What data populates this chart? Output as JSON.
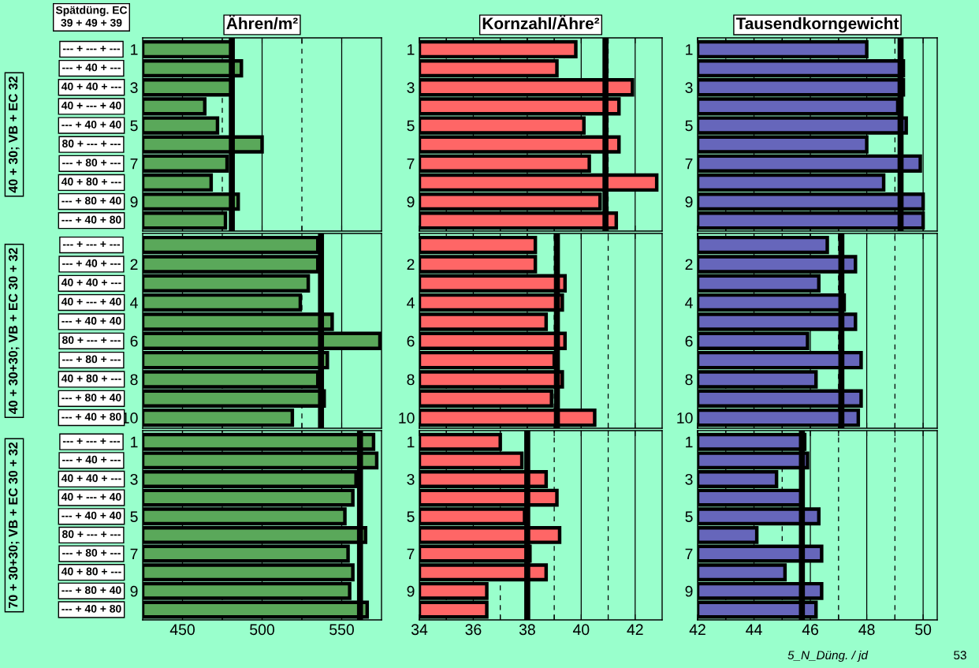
{
  "chart_data": [
    {
      "type": "bar",
      "orientation": "horizontal",
      "title": "Ähren/m²",
      "categories": [
        "1",
        null,
        "3",
        null,
        "5",
        null,
        "7",
        null,
        "9",
        null
      ],
      "color": "#5aa85a",
      "values": [
        481,
        487,
        481,
        464,
        472,
        500,
        478,
        468,
        485,
        477
      ],
      "xlim": [
        425,
        575
      ],
      "xticks": [
        450,
        {
          "value": 475,
          "label": null
        },
        500,
        {
          "value": 525,
          "label": null
        },
        550
      ],
      "grid": "x",
      "tick_labels": "y",
      "ref_lines": [
        {
          "axis": "x",
          "value": 481,
          "color": "#000000"
        }
      ],
      "annotations": [
        "40 + 30; VB + EC 32",
        "--- + --- + ---",
        "--- + 40 + ---",
        "40 + 40 + ---",
        "40 + --- + 40",
        "--- + 40 + 40",
        "80 + --- + ---",
        "--- + 80 + ---",
        "40 + 80 + ---",
        "--- + 80 + 40",
        "--- + 40 + 80",
        "Spätdüng. EC\n39 + 49 + 39"
      ]
    },
    {
      "type": "bar",
      "orientation": "horizontal",
      "title": "Kornzahl/Ähre²",
      "categories": [
        "1",
        null,
        "3",
        null,
        "5",
        null,
        "7",
        null,
        "9",
        null
      ],
      "color": "#ff6666",
      "values": [
        39.8,
        39.1,
        41.9,
        41.4,
        40.1,
        41.4,
        40.3,
        42.8,
        40.7,
        41.3
      ],
      "xlim": [
        34,
        43
      ],
      "xticks": [
        34,
        {
          "value": 35,
          "label": null
        },
        36,
        {
          "value": 37,
          "label": null
        },
        38,
        {
          "value": 39,
          "label": null
        },
        40,
        {
          "value": 41,
          "label": null
        },
        42
      ],
      "grid": "x",
      "tick_labels": "y",
      "ref_lines": [
        {
          "axis": "x",
          "value": 40.9,
          "color": "#000000"
        }
      ]
    },
    {
      "type": "bar",
      "orientation": "horizontal",
      "title": "Tausendkorngewicht",
      "categories": [
        "1",
        null,
        "3",
        null,
        "5",
        null,
        "7",
        null,
        "9",
        null
      ],
      "color": "#6666bb",
      "values": [
        48.0,
        49.3,
        49.3,
        49.1,
        49.4,
        48.0,
        49.9,
        48.6,
        50.0,
        50.0
      ],
      "xlim": [
        42,
        50.5
      ],
      "xticks": [
        42,
        {
          "value": 43,
          "label": null
        },
        44,
        {
          "value": 45,
          "label": null
        },
        46,
        {
          "value": 47,
          "label": null
        },
        48,
        {
          "value": 49,
          "label": null
        },
        50
      ],
      "grid": "x",
      "tick_labels": "y",
      "ref_lines": [
        {
          "axis": "x",
          "value": 49.2,
          "color": "#000000"
        }
      ]
    },
    {
      "type": "bar",
      "orientation": "horizontal",
      "categories": [
        null,
        "2",
        null,
        "4",
        null,
        "6",
        null,
        "8",
        null,
        "10"
      ],
      "color": "#5aa85a",
      "values": [
        535,
        535,
        529,
        524,
        544,
        574,
        541,
        535,
        539,
        519
      ],
      "xlim": [
        425,
        575
      ],
      "xticks": [
        450,
        {
          "value": 475,
          "label": null
        },
        500,
        {
          "value": 525,
          "label": null
        },
        550
      ],
      "grid": "x",
      "tick_labels": "y",
      "ref_lines": [
        {
          "axis": "x",
          "value": 537,
          "color": "#000000"
        }
      ],
      "annotations": [
        "40 + 30+30; VB + EC 30 + 32",
        "--- + --- + ---",
        "--- + 40 + ---",
        "40 + 40 + ---",
        "40 + --- + 40",
        "--- + 40 + 40",
        "80 + --- + ---",
        "--- + 80 + ---",
        "40 + 80 + ---",
        "--- + 80 + 40",
        "--- + 40 + 80"
      ]
    },
    {
      "type": "bar",
      "orientation": "horizontal",
      "categories": [
        null,
        "2",
        null,
        "4",
        null,
        "6",
        null,
        "8",
        null,
        "10"
      ],
      "color": "#ff6666",
      "values": [
        38.3,
        38.3,
        39.4,
        39.3,
        38.7,
        39.4,
        39.0,
        39.3,
        38.9,
        40.5
      ],
      "xlim": [
        34,
        43
      ],
      "xticks": [
        34,
        {
          "value": 35,
          "label": null
        },
        36,
        {
          "value": 37,
          "label": null
        },
        38,
        {
          "value": 39,
          "label": null
        },
        40,
        {
          "value": 41,
          "label": null
        },
        42
      ],
      "grid": "x",
      "tick_labels": "y",
      "ref_lines": [
        {
          "axis": "x",
          "value": 39.1,
          "color": "#000000"
        }
      ]
    },
    {
      "type": "bar",
      "orientation": "horizontal",
      "categories": [
        null,
        "2",
        null,
        "4",
        null,
        "6",
        null,
        "8",
        null,
        "10"
      ],
      "color": "#6666bb",
      "values": [
        46.6,
        47.6,
        46.3,
        47.2,
        47.6,
        45.9,
        47.8,
        46.2,
        47.8,
        47.7
      ],
      "xlim": [
        42,
        50.5
      ],
      "xticks": [
        42,
        {
          "value": 43,
          "label": null
        },
        44,
        {
          "value": 45,
          "label": null
        },
        46,
        {
          "value": 47,
          "label": null
        },
        48,
        {
          "value": 49,
          "label": null
        },
        50
      ],
      "grid": "x",
      "tick_labels": "y",
      "ref_lines": [
        {
          "axis": "x",
          "value": 47.1,
          "color": "#000000"
        }
      ]
    },
    {
      "type": "bar",
      "orientation": "horizontal",
      "categories": [
        "1",
        null,
        "3",
        null,
        "5",
        null,
        "7",
        null,
        "9",
        null
      ],
      "color": "#5aa85a",
      "values": [
        570,
        572,
        559,
        557,
        552,
        565,
        554,
        557,
        555,
        566
      ],
      "xlim": [
        425,
        575
      ],
      "xticks": [
        450,
        {
          "value": 475,
          "label": null
        },
        500,
        {
          "value": 525,
          "label": null
        },
        550
      ],
      "grid": "x",
      "ref_lines": [
        {
          "axis": "x",
          "value": 561.5,
          "color": "#000000"
        }
      ],
      "annotations": [
        "70 + 30+30; VB + EC 30 + 32",
        "--- + --- + ---",
        "--- + 40 + ---",
        "40 + 40 + ---",
        "40 + --- + 40",
        "--- + 40 + 40",
        "80 + --- + ---",
        "--- + 80 + ---",
        "40 + 80 + ---",
        "--- + 80 + 40",
        "--- + 40 + 80"
      ]
    },
    {
      "type": "bar",
      "orientation": "horizontal",
      "categories": [
        "1",
        null,
        "3",
        null,
        "5",
        null,
        "7",
        null,
        "9",
        null
      ],
      "color": "#ff6666",
      "values": [
        37.0,
        37.8,
        38.7,
        39.1,
        37.9,
        39.2,
        38.1,
        38.7,
        36.5,
        36.5
      ],
      "xlim": [
        34,
        43
      ],
      "xticks": [
        34,
        {
          "value": 35,
          "label": null
        },
        36,
        {
          "value": 37,
          "label": null
        },
        38,
        {
          "value": 39,
          "label": null
        },
        40,
        {
          "value": 41,
          "label": null
        },
        42
      ],
      "grid": "x",
      "ref_lines": [
        {
          "axis": "x",
          "value": 38.0,
          "color": "#000000"
        }
      ]
    },
    {
      "type": "bar",
      "orientation": "horizontal",
      "categories": [
        "1",
        null,
        "3",
        null,
        "5",
        null,
        "7",
        null,
        "9",
        null
      ],
      "color": "#6666bb",
      "values": [
        45.8,
        45.9,
        44.8,
        45.7,
        46.3,
        44.1,
        46.4,
        45.1,
        46.4,
        46.2
      ],
      "xlim": [
        42,
        50.5
      ],
      "xticks": [
        42,
        {
          "value": 43,
          "label": null
        },
        44,
        {
          "value": 45,
          "label": null
        },
        46,
        {
          "value": 47,
          "label": null
        },
        48,
        {
          "value": 49,
          "label": null
        },
        50
      ],
      "grid": "x",
      "ref_lines": [
        {
          "axis": "x",
          "value": 45.7,
          "color": "#000000"
        }
      ],
      "annotations": [
        "5_N_Düng. / jd",
        "53"
      ]
    }
  ]
}
